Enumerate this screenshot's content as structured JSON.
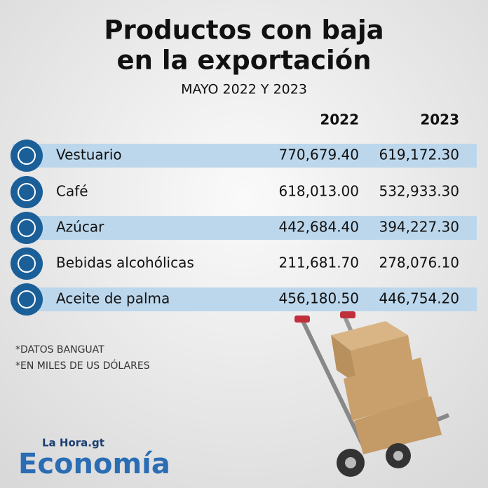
{
  "header": {
    "title": [
      "Productos con baja",
      "en la exportación"
    ],
    "subtitle": "MAYO 2022 Y 2023"
  },
  "table": {
    "columns": [
      "2022",
      "2023"
    ],
    "rows": [
      [
        "Vestuario",
        "770,679.40",
        "619,172.30"
      ],
      [
        "Café",
        "618,013.00",
        "532,933.30"
      ],
      [
        "Azúcar",
        "442,684.40",
        "394,227.30"
      ],
      [
        "Bebidas alcohólicas",
        "211,681.70",
        "278,076.10"
      ],
      [
        "Aceite de palma",
        "456,180.50",
        "446,754.20"
      ]
    ]
  },
  "notes": [
    "*DATOS BANGUAT",
    "*EN MILES DE US DÓLARES"
  ],
  "logo": {
    "brand": "La Hora.gt",
    "section": "Economía"
  }
}
